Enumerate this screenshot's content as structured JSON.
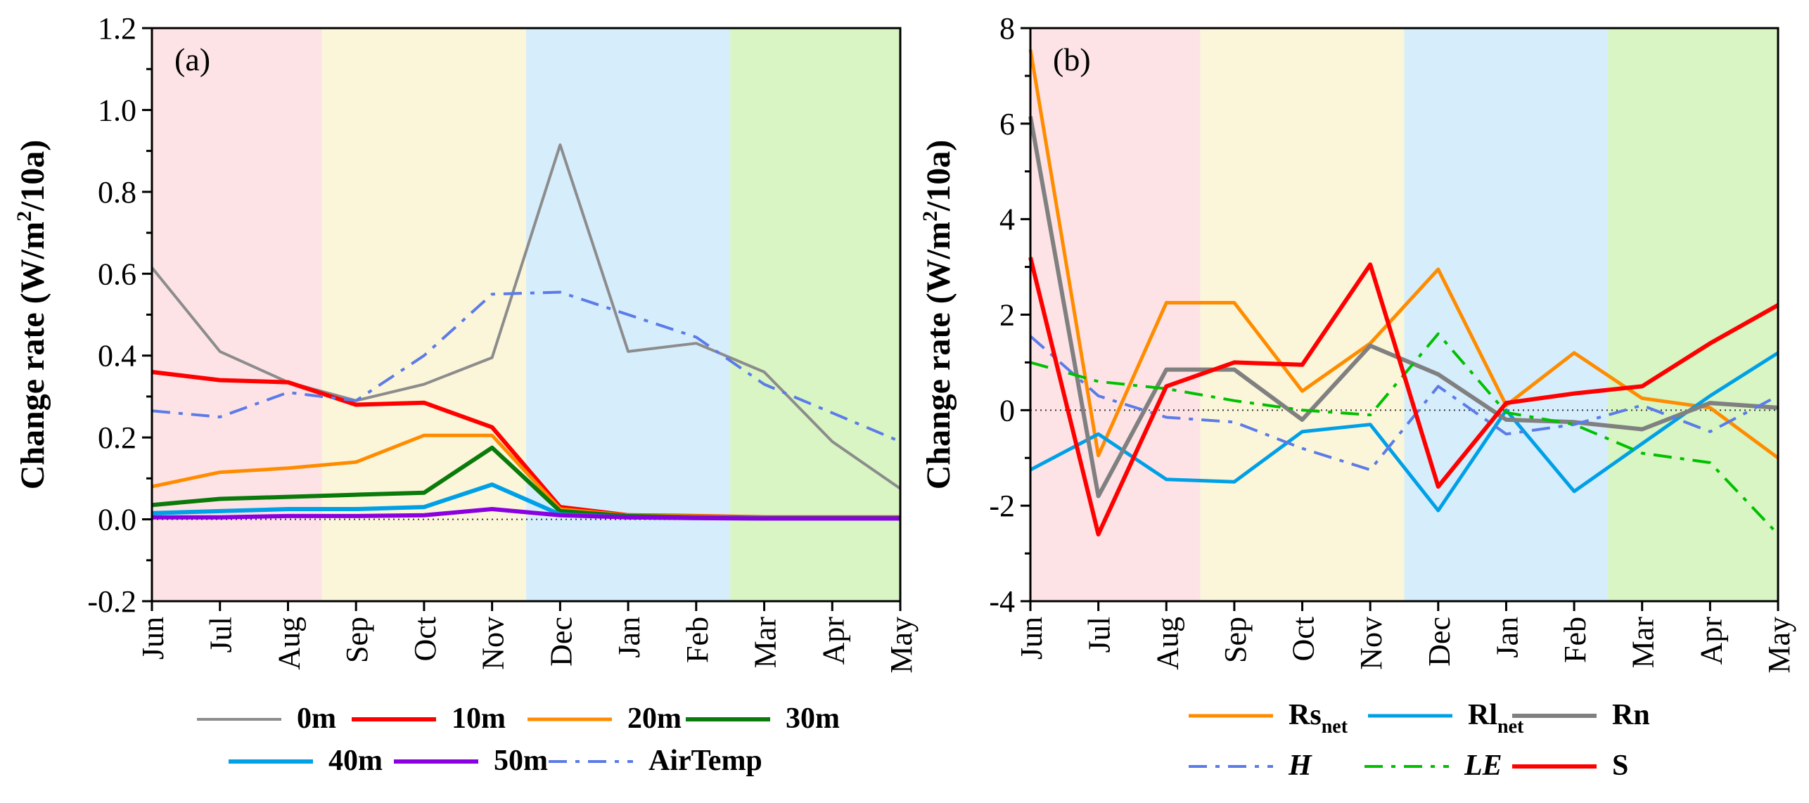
{
  "chart_data": [
    {
      "type": "line",
      "panel_label": "(a)",
      "ylabel": "Change rate (W/m²/10a)",
      "ylabel_parts": {
        "before": "Change rate (W/m",
        "sup": "2",
        "after": "/10a)"
      },
      "ylim": [
        -0.2,
        1.2
      ],
      "yticks": [
        "-0.2",
        "0.0",
        "0.2",
        "0.4",
        "0.6",
        "0.8",
        "1.0",
        "1.2"
      ],
      "ytick_values": [
        -0.2,
        0.0,
        0.2,
        0.4,
        0.6,
        0.8,
        1.0,
        1.2
      ],
      "categories": [
        "Jun",
        "Jul",
        "Aug",
        "Sep",
        "Oct",
        "Nov",
        "Dec",
        "Jan",
        "Feb",
        "Mar",
        "Apr",
        "May"
      ],
      "zero_line": true,
      "season_bands": [
        {
          "from": -0.5,
          "to": 2.5,
          "color": "#fde3e6"
        },
        {
          "from": 2.5,
          "to": 5.5,
          "color": "#fbf6d9"
        },
        {
          "from": 5.5,
          "to": 8.5,
          "color": "#d6edfb"
        },
        {
          "from": 8.5,
          "to": 11.5,
          "color": "#d8f5c3"
        }
      ],
      "series": [
        {
          "name": "0m",
          "color": "#8c8c8c",
          "dash": "solid",
          "width": 4,
          "values": [
            0.615,
            0.41,
            0.335,
            0.29,
            0.33,
            0.395,
            0.915,
            0.41,
            0.43,
            0.36,
            0.19,
            0.075
          ]
        },
        {
          "name": "10m",
          "color": "#ff0000",
          "dash": "solid",
          "width": 6,
          "values": [
            0.36,
            0.34,
            0.335,
            0.28,
            0.285,
            0.225,
            0.03,
            0.01,
            0.008,
            0.005,
            0.005,
            0.005
          ]
        },
        {
          "name": "20m",
          "color": "#ff8c00",
          "dash": "solid",
          "width": 5,
          "values": [
            0.08,
            0.115,
            0.125,
            0.14,
            0.205,
            0.205,
            0.025,
            0.01,
            0.008,
            0.005,
            0.005,
            0.005
          ]
        },
        {
          "name": "30m",
          "color": "#0a7a0a",
          "dash": "solid",
          "width": 6,
          "values": [
            0.035,
            0.05,
            0.055,
            0.06,
            0.065,
            0.175,
            0.02,
            0.008,
            0.005,
            0.003,
            0.003,
            0.003
          ]
        },
        {
          "name": "40m",
          "color": "#00a0e6",
          "dash": "solid",
          "width": 6,
          "values": [
            0.015,
            0.02,
            0.025,
            0.025,
            0.03,
            0.085,
            0.012,
            0.005,
            0.003,
            0.002,
            0.002,
            0.002
          ]
        },
        {
          "name": "50m",
          "color": "#8a00e0",
          "dash": "solid",
          "width": 6,
          "values": [
            0.005,
            0.005,
            0.008,
            0.008,
            0.01,
            0.025,
            0.01,
            0.005,
            0.003,
            0.002,
            0.002,
            0.002
          ]
        },
        {
          "name": "AirTemp",
          "color": "#5b7be8",
          "dash": "dashdot",
          "width": 4,
          "values": [
            0.265,
            0.25,
            0.31,
            0.29,
            0.4,
            0.55,
            0.555,
            0.5,
            0.445,
            0.33,
            0.26,
            0.19
          ]
        }
      ],
      "legend_rows": [
        [
          "0m",
          "10m",
          "20m",
          "30m"
        ],
        [
          "40m",
          "50m",
          "AirTemp"
        ]
      ]
    },
    {
      "type": "line",
      "panel_label": "(b)",
      "ylabel": "Change rate (W/m²/10a)",
      "ylabel_parts": {
        "before": "Change rate (W/m",
        "sup": "2",
        "after": "/10a)"
      },
      "ylim": [
        -4,
        8
      ],
      "yticks": [
        "-4",
        "-2",
        "0",
        "2",
        "4",
        "6",
        "8"
      ],
      "ytick_values": [
        -4,
        -2,
        0,
        2,
        4,
        6,
        8
      ],
      "categories": [
        "Jun",
        "Jul",
        "Aug",
        "Sep",
        "Oct",
        "Nov",
        "Dec",
        "Jan",
        "Feb",
        "Mar",
        "Apr",
        "May"
      ],
      "zero_line": true,
      "season_bands": [
        {
          "from": -0.5,
          "to": 2.5,
          "color": "#fde3e6"
        },
        {
          "from": 2.5,
          "to": 5.5,
          "color": "#fbf6d9"
        },
        {
          "from": 5.5,
          "to": 8.5,
          "color": "#d6edfb"
        },
        {
          "from": 8.5,
          "to": 11.5,
          "color": "#d8f5c3"
        }
      ],
      "series": [
        {
          "name": "Rs",
          "sub": "net",
          "italic": false,
          "color": "#ff8c00",
          "dash": "solid",
          "width": 5,
          "values": [
            7.55,
            -0.95,
            2.25,
            2.25,
            0.4,
            1.4,
            2.95,
            0.1,
            1.2,
            0.25,
            0.05,
            -1.0
          ]
        },
        {
          "name": "Rl",
          "sub": "net",
          "italic": false,
          "color": "#00a0e6",
          "dash": "solid",
          "width": 5,
          "values": [
            -1.25,
            -0.5,
            -1.45,
            -1.5,
            -0.45,
            -0.3,
            -2.1,
            0.0,
            -1.7,
            -0.7,
            0.3,
            1.2
          ]
        },
        {
          "name": "Rn",
          "sub": "",
          "italic": false,
          "color": "#808080",
          "dash": "solid",
          "width": 6,
          "values": [
            6.15,
            -1.8,
            0.85,
            0.85,
            -0.2,
            1.35,
            0.75,
            -0.2,
            -0.25,
            -0.4,
            0.15,
            0.05
          ]
        },
        {
          "name": "H",
          "sub": "",
          "italic": true,
          "color": "#5b7be8",
          "dash": "dashdot",
          "width": 4,
          "values": [
            1.55,
            0.3,
            -0.15,
            -0.25,
            -0.8,
            -1.25,
            0.5,
            -0.5,
            -0.3,
            0.1,
            -0.45,
            0.3
          ]
        },
        {
          "name": "LE",
          "sub": "",
          "italic": true,
          "color": "#00c000",
          "dash": "dashdot",
          "width": 4,
          "values": [
            1.0,
            0.6,
            0.45,
            0.2,
            0.0,
            -0.1,
            1.6,
            -0.05,
            -0.3,
            -0.9,
            -1.1,
            -2.6
          ]
        },
        {
          "name": "S",
          "sub": "",
          "italic": false,
          "color": "#ff0000",
          "dash": "solid",
          "width": 6,
          "values": [
            3.2,
            -2.6,
            0.5,
            1.0,
            0.95,
            3.05,
            -1.6,
            0.15,
            0.35,
            0.5,
            1.4,
            2.2
          ]
        }
      ],
      "legend_rows": [
        [
          "Rs",
          "Rl",
          "Rn"
        ],
        [
          "H",
          "LE",
          "S"
        ]
      ]
    }
  ]
}
